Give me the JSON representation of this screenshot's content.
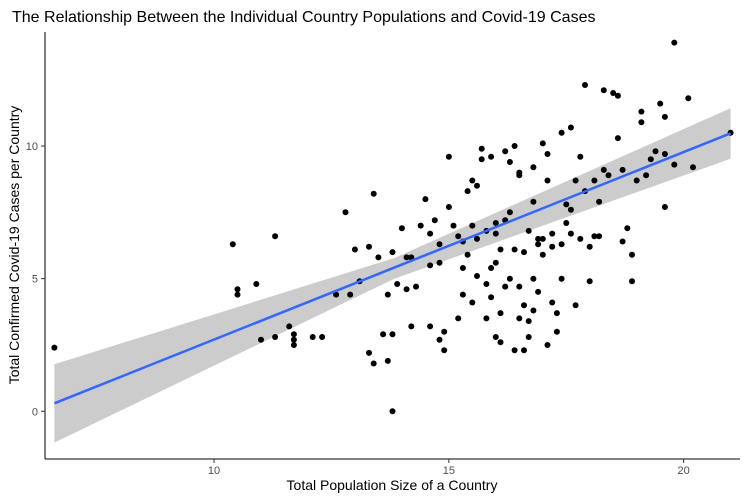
{
  "chart_data": {
    "type": "scatter",
    "title": "The Relationship Between the Individual Country Populations and Covid-19 Cases",
    "xlabel": "Total Population Size of a Country",
    "ylabel": "Total Confirmed Covid-19 Cases per Country",
    "xlim": [
      6.4,
      21.2
    ],
    "ylim": [
      -1.8,
      14.3
    ],
    "x_ticks": [
      10,
      15,
      20
    ],
    "y_ticks": [
      0,
      5,
      10
    ],
    "grid": false,
    "legend": "none",
    "point_color": "#000000",
    "trend_line": {
      "type": "linear",
      "color": "#3366FF",
      "band_color": "#CCCCCC",
      "x": [
        6.6,
        13.84,
        21.0
      ],
      "y": [
        0.3,
        5.39,
        10.48
      ],
      "y_lower": [
        -1.18,
        5.0,
        9.52
      ],
      "y_upper": [
        1.77,
        5.78,
        11.43
      ]
    },
    "points": [
      [
        6.6,
        2.4
      ],
      [
        10.4,
        6.3
      ],
      [
        10.5,
        4.4
      ],
      [
        10.5,
        4.6
      ],
      [
        10.9,
        4.8
      ],
      [
        11.0,
        2.7
      ],
      [
        11.3,
        6.6
      ],
      [
        11.3,
        2.8
      ],
      [
        11.6,
        3.2
      ],
      [
        11.7,
        2.5
      ],
      [
        11.7,
        2.9
      ],
      [
        11.7,
        2.7
      ],
      [
        12.1,
        2.8
      ],
      [
        12.3,
        2.8
      ],
      [
        12.6,
        4.4
      ],
      [
        12.8,
        7.5
      ],
      [
        12.9,
        4.4
      ],
      [
        13.0,
        6.1
      ],
      [
        13.1,
        4.9
      ],
      [
        13.3,
        6.2
      ],
      [
        13.3,
        2.2
      ],
      [
        13.4,
        1.8
      ],
      [
        13.4,
        8.2
      ],
      [
        13.5,
        5.8
      ],
      [
        13.7,
        1.9
      ],
      [
        13.7,
        4.4
      ],
      [
        13.8,
        0.0
      ],
      [
        13.8,
        6.0
      ],
      [
        13.8,
        2.9
      ],
      [
        13.9,
        4.8
      ],
      [
        14.0,
        6.9
      ],
      [
        14.1,
        4.6
      ],
      [
        14.1,
        5.8
      ],
      [
        14.2,
        5.8
      ],
      [
        14.2,
        3.2
      ],
      [
        14.3,
        4.7
      ],
      [
        14.4,
        7.0
      ],
      [
        14.5,
        8.0
      ],
      [
        14.6,
        6.7
      ],
      [
        14.6,
        5.5
      ],
      [
        14.7,
        7.2
      ],
      [
        14.8,
        5.6
      ],
      [
        14.8,
        6.3
      ],
      [
        14.8,
        2.7
      ],
      [
        14.9,
        3.0
      ],
      [
        14.9,
        2.3
      ],
      [
        15.0,
        9.6
      ],
      [
        15.0,
        7.7
      ],
      [
        15.1,
        7.0
      ],
      [
        15.2,
        3.5
      ],
      [
        15.2,
        6.6
      ],
      [
        15.3,
        5.4
      ],
      [
        15.3,
        6.4
      ],
      [
        15.4,
        5.9
      ],
      [
        15.4,
        8.3
      ],
      [
        15.5,
        7.0
      ],
      [
        15.5,
        4.1
      ],
      [
        15.5,
        8.7
      ],
      [
        15.6,
        8.5
      ],
      [
        15.6,
        5.1
      ],
      [
        15.6,
        6.5
      ],
      [
        15.7,
        9.9
      ],
      [
        15.7,
        9.5
      ],
      [
        15.8,
        3.5
      ],
      [
        15.8,
        4.8
      ],
      [
        15.8,
        6.8
      ],
      [
        15.9,
        4.3
      ],
      [
        15.9,
        5.4
      ],
      [
        15.9,
        9.6
      ],
      [
        16.0,
        2.8
      ],
      [
        16.0,
        7.1
      ],
      [
        16.0,
        5.6
      ],
      [
        16.0,
        6.7
      ],
      [
        16.1,
        6.1
      ],
      [
        16.1,
        3.7
      ],
      [
        16.1,
        2.6
      ],
      [
        16.2,
        7.2
      ],
      [
        16.2,
        9.8
      ],
      [
        16.2,
        4.7
      ],
      [
        16.3,
        5.0
      ],
      [
        16.3,
        7.5
      ],
      [
        16.3,
        9.4
      ],
      [
        16.4,
        6.1
      ],
      [
        16.4,
        10.0
      ],
      [
        16.4,
        2.3
      ],
      [
        16.5,
        9.0
      ],
      [
        16.5,
        4.7
      ],
      [
        16.5,
        3.5
      ],
      [
        16.5,
        8.9
      ],
      [
        16.6,
        6.0
      ],
      [
        16.6,
        2.3
      ],
      [
        16.6,
        4.0
      ],
      [
        16.7,
        6.8
      ],
      [
        16.7,
        3.4
      ],
      [
        16.8,
        7.9
      ],
      [
        16.8,
        5.0
      ],
      [
        16.8,
        3.8
      ],
      [
        16.8,
        9.2
      ],
      [
        16.9,
        6.3
      ],
      [
        16.9,
        4.5
      ],
      [
        16.9,
        6.5
      ],
      [
        17.0,
        10.1
      ],
      [
        17.0,
        5.9
      ],
      [
        17.0,
        6.5
      ],
      [
        17.1,
        8.7
      ],
      [
        17.1,
        9.7
      ],
      [
        17.1,
        2.5
      ],
      [
        17.2,
        6.7
      ],
      [
        17.2,
        4.1
      ],
      [
        17.2,
        6.2
      ],
      [
        17.3,
        3.7
      ],
      [
        17.4,
        6.3
      ],
      [
        17.4,
        5.0
      ],
      [
        17.4,
        10.5
      ],
      [
        17.5,
        7.1
      ],
      [
        17.5,
        7.8
      ],
      [
        17.6,
        7.6
      ],
      [
        17.6,
        10.7
      ],
      [
        17.7,
        8.7
      ],
      [
        17.7,
        4.0
      ],
      [
        17.8,
        9.6
      ],
      [
        17.8,
        6.5
      ],
      [
        17.9,
        12.3
      ],
      [
        17.9,
        8.3
      ],
      [
        18.0,
        6.2
      ],
      [
        18.0,
        4.9
      ],
      [
        18.1,
        8.7
      ],
      [
        18.2,
        7.9
      ],
      [
        18.2,
        6.6
      ],
      [
        18.3,
        12.1
      ],
      [
        18.3,
        9.1
      ],
      [
        18.4,
        8.9
      ],
      [
        18.5,
        12.0
      ],
      [
        18.6,
        11.9
      ],
      [
        18.6,
        10.3
      ],
      [
        18.7,
        9.1
      ],
      [
        18.8,
        6.9
      ],
      [
        18.9,
        5.9
      ],
      [
        18.9,
        4.9
      ],
      [
        19.0,
        8.7
      ],
      [
        19.1,
        10.9
      ],
      [
        19.1,
        11.3
      ],
      [
        19.2,
        8.9
      ],
      [
        19.3,
        9.5
      ],
      [
        19.4,
        9.8
      ],
      [
        19.5,
        11.6
      ],
      [
        19.6,
        11.1
      ],
      [
        19.6,
        9.7
      ],
      [
        19.6,
        7.7
      ],
      [
        19.8,
        9.3
      ],
      [
        19.8,
        13.9
      ],
      [
        20.1,
        11.8
      ],
      [
        20.2,
        9.2
      ],
      [
        21.0,
        10.5
      ],
      [
        13.6,
        2.9
      ],
      [
        14.6,
        3.2
      ],
      [
        15.3,
        4.4
      ],
      [
        16.7,
        2.8
      ],
      [
        17.3,
        3.0
      ],
      [
        17.6,
        6.7
      ],
      [
        18.1,
        6.6
      ],
      [
        18.7,
        6.4
      ]
    ]
  }
}
